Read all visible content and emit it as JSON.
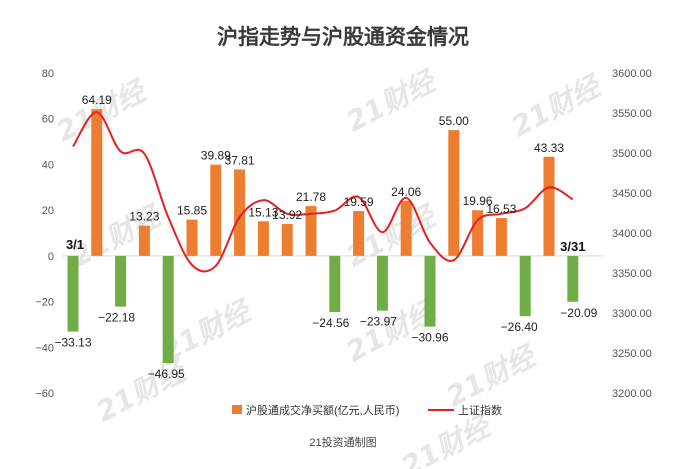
{
  "chart_data": {
    "type": "bar",
    "title": "沪指走势与沪股通资金情况",
    "source": "21投资通制图",
    "watermark": "21财经",
    "first_label": "3/1",
    "last_label": "3/31",
    "y_left_ticks": [
      "80",
      "60",
      "40",
      "20",
      "0",
      "−20",
      "−40",
      "−60"
    ],
    "y_left_lim": [
      -60,
      80
    ],
    "y_right_ticks": [
      "3600.00",
      "3550.00",
      "3500.00",
      "3450.00",
      "3400.00",
      "3350.00",
      "3300.00",
      "3250.00",
      "3200.00"
    ],
    "y_right_lim": [
      3200,
      3600
    ],
    "grid": false,
    "legend_position": "bottom",
    "colors": {
      "positive_bar": "#ED7D31",
      "negative_bar": "#70AD47",
      "line": "#E52020"
    },
    "series": [
      {
        "name": "沪股通成交净买额(亿元,人民币)",
        "axis": "left",
        "values": [
          -33.13,
          64.19,
          -22.18,
          13.23,
          -46.95,
          15.85,
          39.89,
          37.81,
          15.13,
          13.92,
          21.78,
          -24.56,
          19.59,
          -23.97,
          24.06,
          -30.96,
          55.0,
          19.96,
          16.53,
          -26.4,
          43.33,
          -20.09
        ],
        "labels": [
          "−33.13",
          "64.19",
          "−22.18",
          "13.23",
          "−46.95",
          "15.85",
          "39.89",
          "37.81",
          "15.13",
          "13.92",
          "21.78",
          "−24.56",
          "19.59",
          "−23.97",
          "24.06",
          "−30.96",
          "55.00",
          "19.96",
          "16.53",
          "−26.40",
          "43.33",
          "−20.09"
        ]
      },
      {
        "name": "上证指数",
        "axis": "right",
        "type": "line",
        "values": [
          3508,
          3551,
          3502,
          3499,
          3420,
          3360,
          3359,
          3420,
          3441,
          3424,
          3424,
          3428,
          3445,
          3401,
          3444,
          3388,
          3366,
          3416,
          3424,
          3431,
          3457,
          3442
        ]
      }
    ]
  }
}
